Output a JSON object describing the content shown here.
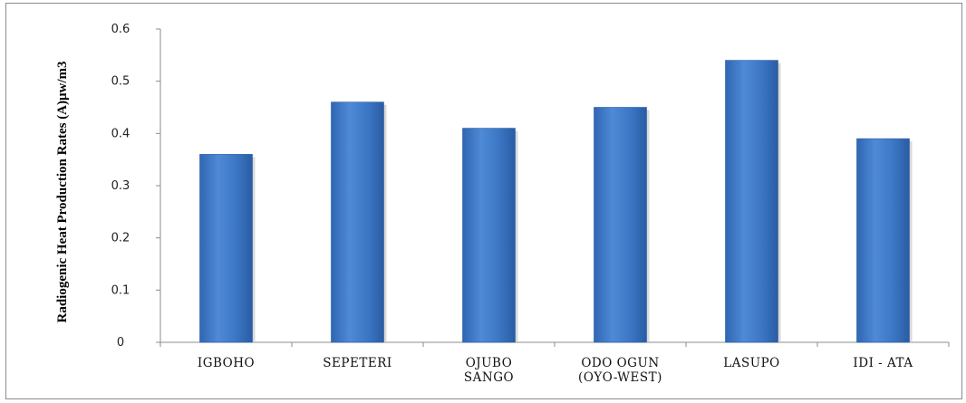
{
  "chart_data": {
    "type": "bar",
    "title": "",
    "xlabel": "",
    "ylabel": "Radiogenic Heat Production Rates (A)μw/m3",
    "categories": [
      [
        "IGBOHO"
      ],
      [
        "SEPETERI"
      ],
      [
        "OJUBO",
        "SANGO"
      ],
      [
        "ODO OGUN",
        "(OYO-WEST)"
      ],
      [
        "LASUPO"
      ],
      [
        "IDI - ATA"
      ]
    ],
    "values": [
      0.36,
      0.46,
      0.41,
      0.45,
      0.54,
      0.39
    ],
    "ylim": [
      0,
      0.6
    ],
    "yticks": [
      {
        "value": 0,
        "label": "0"
      },
      {
        "value": 0.1,
        "label": "0.1"
      },
      {
        "value": 0.2,
        "label": "0.2"
      },
      {
        "value": 0.3,
        "label": "0.3"
      },
      {
        "value": 0.4,
        "label": "0.4"
      },
      {
        "value": 0.5,
        "label": "0.5"
      },
      {
        "value": 0.6,
        "label": "0.6"
      }
    ],
    "grid": false,
    "legend": "none",
    "bar_color": "#3c78c8",
    "bar_color_light": "#5b96dd",
    "bar_color_dark": "#2a5fa6"
  }
}
